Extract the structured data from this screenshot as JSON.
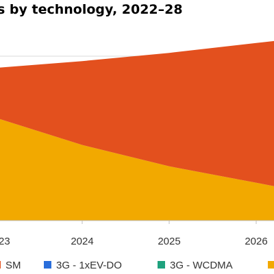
{
  "chart_data": {
    "type": "area",
    "title": "s by technology, 2022–28",
    "x": [
      "23",
      "2024",
      "2025",
      "2026"
    ],
    "series": [
      {
        "name": "3G - WCDMA",
        "color": "#F2A900",
        "values": [
          62,
          46,
          33,
          23
        ]
      },
      {
        "name": "",
        "color": "#E3501E",
        "values": [
          31,
          51,
          69,
          85
        ]
      }
    ],
    "ylim": [
      0,
      125
    ],
    "grid": true,
    "legend": {
      "position": "bottom",
      "entries": [
        {
          "label": "SM",
          "color": "#E3501E"
        },
        {
          "label": "3G - 1xEV-DO",
          "color": "#2A6EDB"
        },
        {
          "label": "3G - WCDMA",
          "color": "#1FA27E"
        },
        {
          "label": "",
          "color": "#F2A900"
        }
      ]
    }
  }
}
